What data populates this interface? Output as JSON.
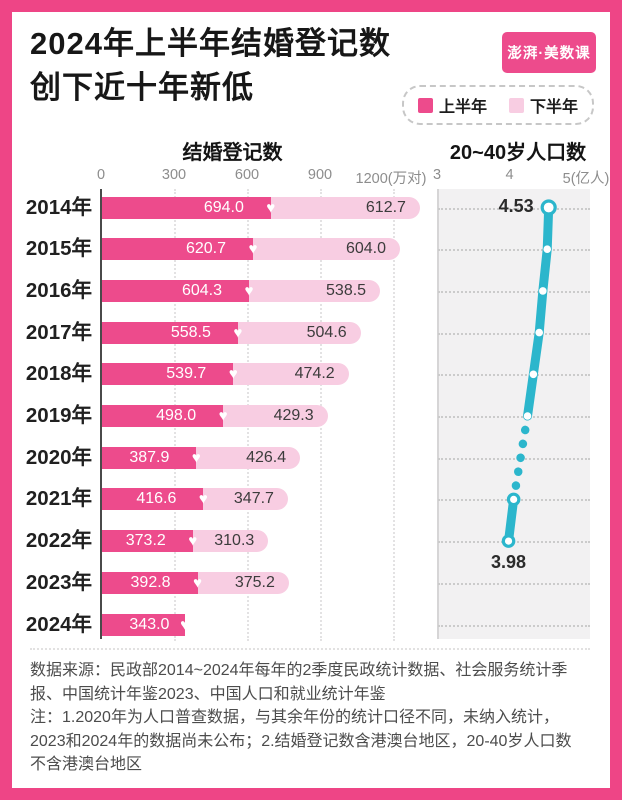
{
  "header": {
    "title_line1": "2024年上半年结婚登记数",
    "title_line2": "创下近十年新低",
    "logo_text": "澎湃·美数课",
    "legend": [
      {
        "label": "上半年",
        "color": "#ed4b8c"
      },
      {
        "label": "下半年",
        "color": "#f8cde2"
      }
    ]
  },
  "charts": {
    "left_title": "结婚登记数",
    "right_title": "20~40岁人口数",
    "left_axis_ticks": [
      "0",
      "300",
      "600",
      "900",
      "1200(万对)"
    ],
    "right_axis_ticks": [
      "3",
      "4",
      "5(亿人)"
    ]
  },
  "chart_data": [
    {
      "type": "bar",
      "title": "结婚登记数",
      "unit": "万对",
      "orientation": "horizontal",
      "stacked": true,
      "categories": [
        "2014年",
        "2015年",
        "2016年",
        "2017年",
        "2018年",
        "2019年",
        "2020年",
        "2021年",
        "2022年",
        "2023年",
        "2024年"
      ],
      "series": [
        {
          "name": "上半年",
          "color": "#ed4b8c",
          "values": [
            694.0,
            620.7,
            604.3,
            558.5,
            539.7,
            498.0,
            387.9,
            416.6,
            373.2,
            392.8,
            343.0
          ]
        },
        {
          "name": "下半年",
          "color": "#f8cde2",
          "values": [
            612.7,
            604.0,
            538.5,
            504.6,
            474.2,
            429.3,
            426.4,
            347.7,
            310.3,
            375.2,
            null
          ]
        }
      ],
      "xlim": [
        0,
        1200
      ],
      "grid": "vertical-dotted"
    },
    {
      "type": "line",
      "title": "20~40岁人口数",
      "unit": "亿人",
      "color": "#2cb6cc",
      "categories": [
        "2014年",
        "2015年",
        "2016年",
        "2017年",
        "2018年",
        "2019年",
        "2020年",
        "2021年",
        "2022年",
        "2023年",
        "2024年"
      ],
      "values": [
        4.53,
        4.51,
        4.45,
        4.4,
        4.32,
        4.24,
        null,
        4.05,
        3.98,
        null,
        null
      ],
      "labels": [
        {
          "index": 0,
          "text": "4.53",
          "placement": "left"
        },
        {
          "index": 8,
          "text": "3.98",
          "placement": "below"
        }
      ],
      "xlim": [
        3,
        5
      ],
      "grid": "horizontal-dotted",
      "note": "2020年数据未纳入统计（虚线段），2023和2024年数据尚未公布"
    }
  ],
  "footer": {
    "source": "数据来源：民政部2014~2024年每年的2季度民政统计数据、社会服务统计季报、中国统计年鉴2023、中国人口和就业统计年鉴",
    "note": "注：1.2020年为人口普查数据，与其余年份的统计口径不同，未纳入统计，2023和2024年的数据尚未公布；2.结婚登记数含港澳台地区，20-40岁人口数不含港澳台地区"
  },
  "icons": {
    "heart": "♥"
  }
}
